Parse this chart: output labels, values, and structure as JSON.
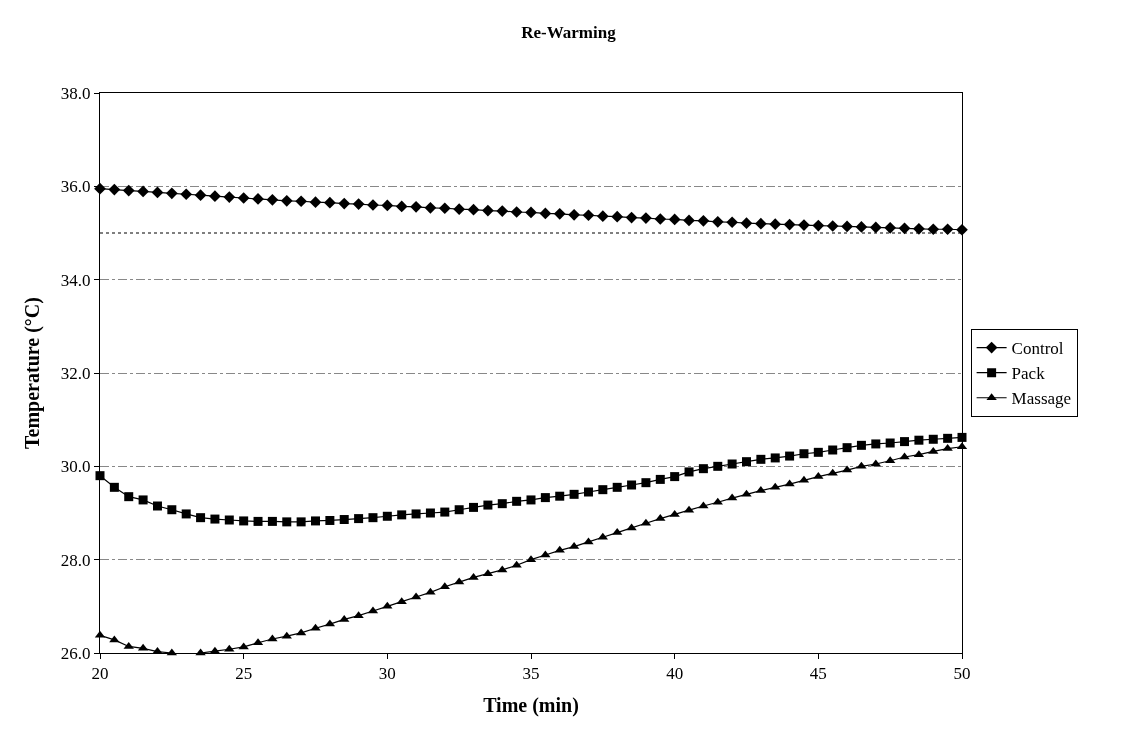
{
  "chart_data": {
    "type": "line",
    "title": "Re-Warming",
    "xlabel": "Time (min)",
    "ylabel": "Temperature (°C)",
    "x": [
      20,
      20.5,
      21,
      21.5,
      22,
      22.5,
      23,
      23.5,
      24,
      24.5,
      25,
      25.5,
      26,
      26.5,
      27,
      27.5,
      28,
      28.5,
      29,
      29.5,
      30,
      30.5,
      31,
      31.5,
      32,
      32.5,
      33,
      33.5,
      34,
      34.5,
      35,
      35.5,
      36,
      36.5,
      37,
      37.5,
      38,
      38.5,
      39,
      39.5,
      40,
      40.5,
      41,
      41.5,
      42,
      42.5,
      43,
      43.5,
      44,
      44.5,
      45,
      45.5,
      46,
      46.5,
      47,
      47.5,
      48,
      48.5,
      49,
      49.5,
      50
    ],
    "series": [
      {
        "name": "Control",
        "color": "#000000",
        "marker": "diamond",
        "values": [
          35.95,
          35.93,
          35.91,
          35.89,
          35.87,
          35.85,
          35.83,
          35.81,
          35.79,
          35.77,
          35.75,
          35.73,
          35.71,
          35.69,
          35.68,
          35.66,
          35.65,
          35.63,
          35.62,
          35.6,
          35.59,
          35.57,
          35.56,
          35.54,
          35.53,
          35.51,
          35.5,
          35.48,
          35.47,
          35.45,
          35.44,
          35.42,
          35.41,
          35.39,
          35.38,
          35.36,
          35.35,
          35.33,
          35.32,
          35.3,
          35.29,
          35.27,
          35.26,
          35.24,
          35.23,
          35.21,
          35.2,
          35.19,
          35.18,
          35.17,
          35.16,
          35.15,
          35.14,
          35.13,
          35.12,
          35.11,
          35.1,
          35.09,
          35.08,
          35.08,
          35.07
        ]
      },
      {
        "name": "Pack",
        "color": "#000000",
        "marker": "square",
        "values": [
          29.8,
          29.55,
          29.35,
          29.28,
          29.15,
          29.07,
          28.98,
          28.9,
          28.87,
          28.85,
          28.83,
          28.82,
          28.82,
          28.81,
          28.81,
          28.83,
          28.84,
          28.86,
          28.88,
          28.9,
          28.93,
          28.96,
          28.98,
          29.0,
          29.02,
          29.07,
          29.12,
          29.17,
          29.2,
          29.25,
          29.28,
          29.33,
          29.36,
          29.4,
          29.45,
          29.5,
          29.55,
          29.6,
          29.65,
          29.72,
          29.78,
          29.88,
          29.95,
          30.0,
          30.05,
          30.1,
          30.15,
          30.18,
          30.22,
          30.27,
          30.3,
          30.35,
          30.4,
          30.45,
          30.48,
          30.5,
          30.53,
          30.56,
          30.58,
          30.6,
          30.62
        ]
      },
      {
        "name": "Massage",
        "color": "#000000",
        "marker": "triangle",
        "values": [
          26.38,
          26.28,
          26.14,
          26.1,
          26.03,
          26.0,
          null,
          26.0,
          26.04,
          26.08,
          26.13,
          26.22,
          26.3,
          26.36,
          26.43,
          26.53,
          26.62,
          26.72,
          26.8,
          26.9,
          27.0,
          27.1,
          27.2,
          27.3,
          27.42,
          27.52,
          27.62,
          27.7,
          27.78,
          27.88,
          28.0,
          28.1,
          28.2,
          28.28,
          28.38,
          28.48,
          28.58,
          28.68,
          28.78,
          28.88,
          28.97,
          29.06,
          29.15,
          29.23,
          29.32,
          29.4,
          29.48,
          29.55,
          29.62,
          29.7,
          29.78,
          29.85,
          29.92,
          30.0,
          30.05,
          30.12,
          30.2,
          30.25,
          30.32,
          30.38,
          30.42
        ]
      }
    ],
    "xlim": [
      20,
      50
    ],
    "xticks": [
      20,
      25,
      30,
      35,
      40,
      45,
      50
    ],
    "ylim": [
      26,
      38
    ],
    "yticks": [
      {
        "value": 26,
        "label": "26.0"
      },
      {
        "value": 28,
        "label": "28.0"
      },
      {
        "value": 30,
        "label": "30.0"
      },
      {
        "value": 32,
        "label": "32.0"
      },
      {
        "value": 34,
        "label": "34.0"
      },
      {
        "value": 36,
        "label": "36.0"
      },
      {
        "value": 38,
        "label": "38.0"
      }
    ],
    "ref_lines": [
      {
        "axis": "y",
        "value": 35,
        "color": "#000000",
        "line_style": "dotted"
      }
    ],
    "grid": "y",
    "legend": "right",
    "line_style": "solid"
  }
}
